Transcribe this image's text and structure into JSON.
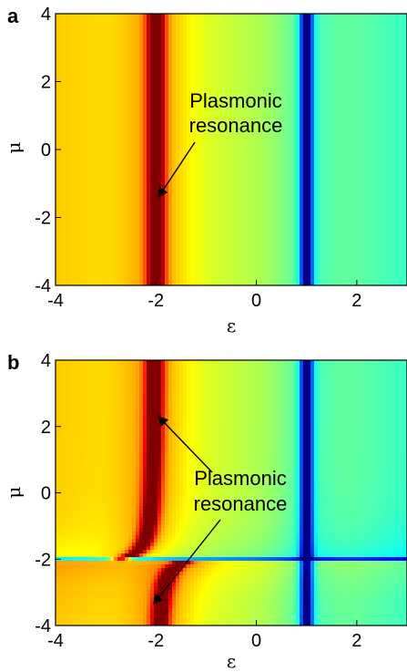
{
  "chart_data": [
    {
      "type": "heatmap",
      "panel_label": "a",
      "xlabel": "ε",
      "ylabel": "μ",
      "xlim": [
        -4,
        3
      ],
      "ylim": [
        -4,
        4
      ],
      "x_ticks": [
        "-4",
        "-2",
        "0",
        "2"
      ],
      "y_ticks": [
        "4",
        "2",
        "0",
        "-2",
        "-4"
      ],
      "colormap": [
        "#00008f",
        "#0050ff",
        "#00ffff",
        "#80ff80",
        "#ffff00",
        "#ff8000",
        "#c00000",
        "#800000"
      ],
      "features": [
        {
          "kind": "vertical-line",
          "x": -2,
          "value": "maximum (dark red)"
        },
        {
          "kind": "vertical-line",
          "x": 1,
          "value": "minimum (dark blue)"
        }
      ],
      "annotations": [
        {
          "text": [
            "Plasmonic",
            "resonance"
          ],
          "points_to": [
            {
              "x": -1.95,
              "y": -1.4
            }
          ]
        }
      ]
    },
    {
      "type": "heatmap",
      "panel_label": "b",
      "xlabel": "ε",
      "ylabel": "μ",
      "xlim": [
        -4,
        3
      ],
      "ylim": [
        -4,
        4
      ],
      "x_ticks": [
        "-4",
        "-2",
        "0",
        "2"
      ],
      "y_ticks": [
        "4",
        "2",
        "0",
        "-2",
        "-4"
      ],
      "colormap": [
        "#00008f",
        "#0050ff",
        "#00ffff",
        "#80ff80",
        "#ffff00",
        "#ff8000",
        "#c00000",
        "#800000"
      ],
      "features": [
        {
          "kind": "curve",
          "x_asymptote": -2,
          "y_asymptote": -2,
          "value": "maximum (dark red), bends near μ = -2"
        },
        {
          "kind": "vertical-line",
          "x": 1,
          "value": "minimum (dark blue)"
        },
        {
          "kind": "horizontal-line",
          "y": -2,
          "value": "discontinuity"
        }
      ],
      "annotations": [
        {
          "text": [
            "Plasmonic",
            "resonance"
          ],
          "points_to": [
            {
              "x": -1.95,
              "y": 2.3
            },
            {
              "x": -2.05,
              "y": -3.35
            }
          ]
        }
      ]
    }
  ]
}
